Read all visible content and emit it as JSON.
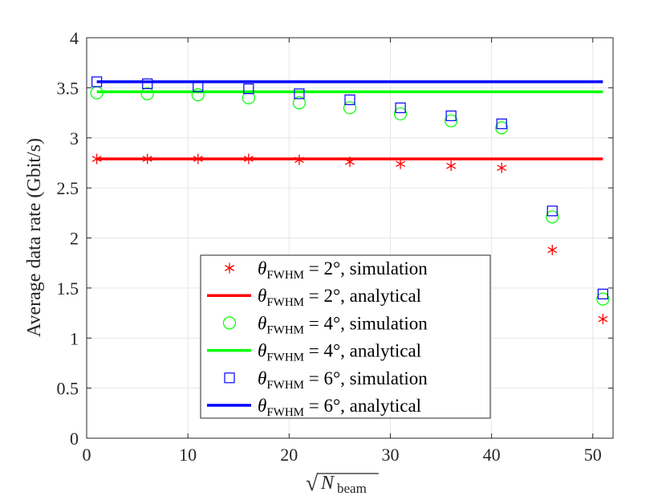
{
  "chart_data": {
    "type": "scatter",
    "title": "",
    "xlabel": "√N_beam",
    "xlabel_parts": {
      "radical": "√",
      "var": "N",
      "sub": "beam"
    },
    "ylabel": "Average data rate (Gbit/s)",
    "xlim": [
      0,
      52
    ],
    "ylim": [
      0,
      4
    ],
    "xticks": [
      0,
      10,
      20,
      30,
      40,
      50
    ],
    "yticks": [
      0,
      0.5,
      1,
      1.5,
      2,
      2.5,
      3,
      3.5,
      4
    ],
    "ytick_labels": [
      "0",
      "0.5",
      "1",
      "1.5",
      "2",
      "2.5",
      "3",
      "3.5",
      "4"
    ],
    "grid": true,
    "legend_position": "bottom-right",
    "x": [
      1,
      6,
      11,
      16,
      21,
      26,
      31,
      36,
      41,
      46,
      51
    ],
    "series": [
      {
        "name": "θFWHM = 2°, simulation",
        "kind": "markers",
        "marker": "asterisk",
        "color": "#ff0000",
        "values": [
          2.79,
          2.79,
          2.79,
          2.79,
          2.78,
          2.76,
          2.74,
          2.72,
          2.7,
          1.88,
          1.19
        ]
      },
      {
        "name": "θFWHM = 2°, analytical",
        "kind": "line",
        "color": "#ff0000",
        "x_range": [
          1,
          51
        ],
        "value": 2.79
      },
      {
        "name": "θFWHM = 4°, simulation",
        "kind": "markers",
        "marker": "circle",
        "color": "#00ff00",
        "values": [
          3.45,
          3.44,
          3.43,
          3.4,
          3.35,
          3.3,
          3.24,
          3.17,
          3.1,
          2.21,
          1.39
        ]
      },
      {
        "name": "θFWHM = 4°, analytical",
        "kind": "line",
        "color": "#00ff00",
        "x_range": [
          1,
          51
        ],
        "value": 3.46
      },
      {
        "name": "θFWHM = 6°, simulation",
        "kind": "markers",
        "marker": "square",
        "color": "#0000ff",
        "values": [
          3.56,
          3.54,
          3.51,
          3.49,
          3.44,
          3.38,
          3.3,
          3.22,
          3.14,
          2.27,
          1.44
        ]
      },
      {
        "name": "θFWHM = 6°, analytical",
        "kind": "line",
        "color": "#0000ff",
        "x_range": [
          1,
          51
        ],
        "value": 3.56
      }
    ],
    "legend": [
      {
        "theta": "θ",
        "sub": "FWHM",
        "rest": " = 2°, simulation"
      },
      {
        "theta": "θ",
        "sub": "FWHM",
        "rest": " = 2°, analytical"
      },
      {
        "theta": "θ",
        "sub": "FWHM",
        "rest": " = 4°, simulation"
      },
      {
        "theta": "θ",
        "sub": "FWHM",
        "rest": " = 4°, analytical"
      },
      {
        "theta": "θ",
        "sub": "FWHM",
        "rest": " = 6°, simulation"
      },
      {
        "theta": "θ",
        "sub": "FWHM",
        "rest": " = 6°, analytical"
      }
    ]
  }
}
